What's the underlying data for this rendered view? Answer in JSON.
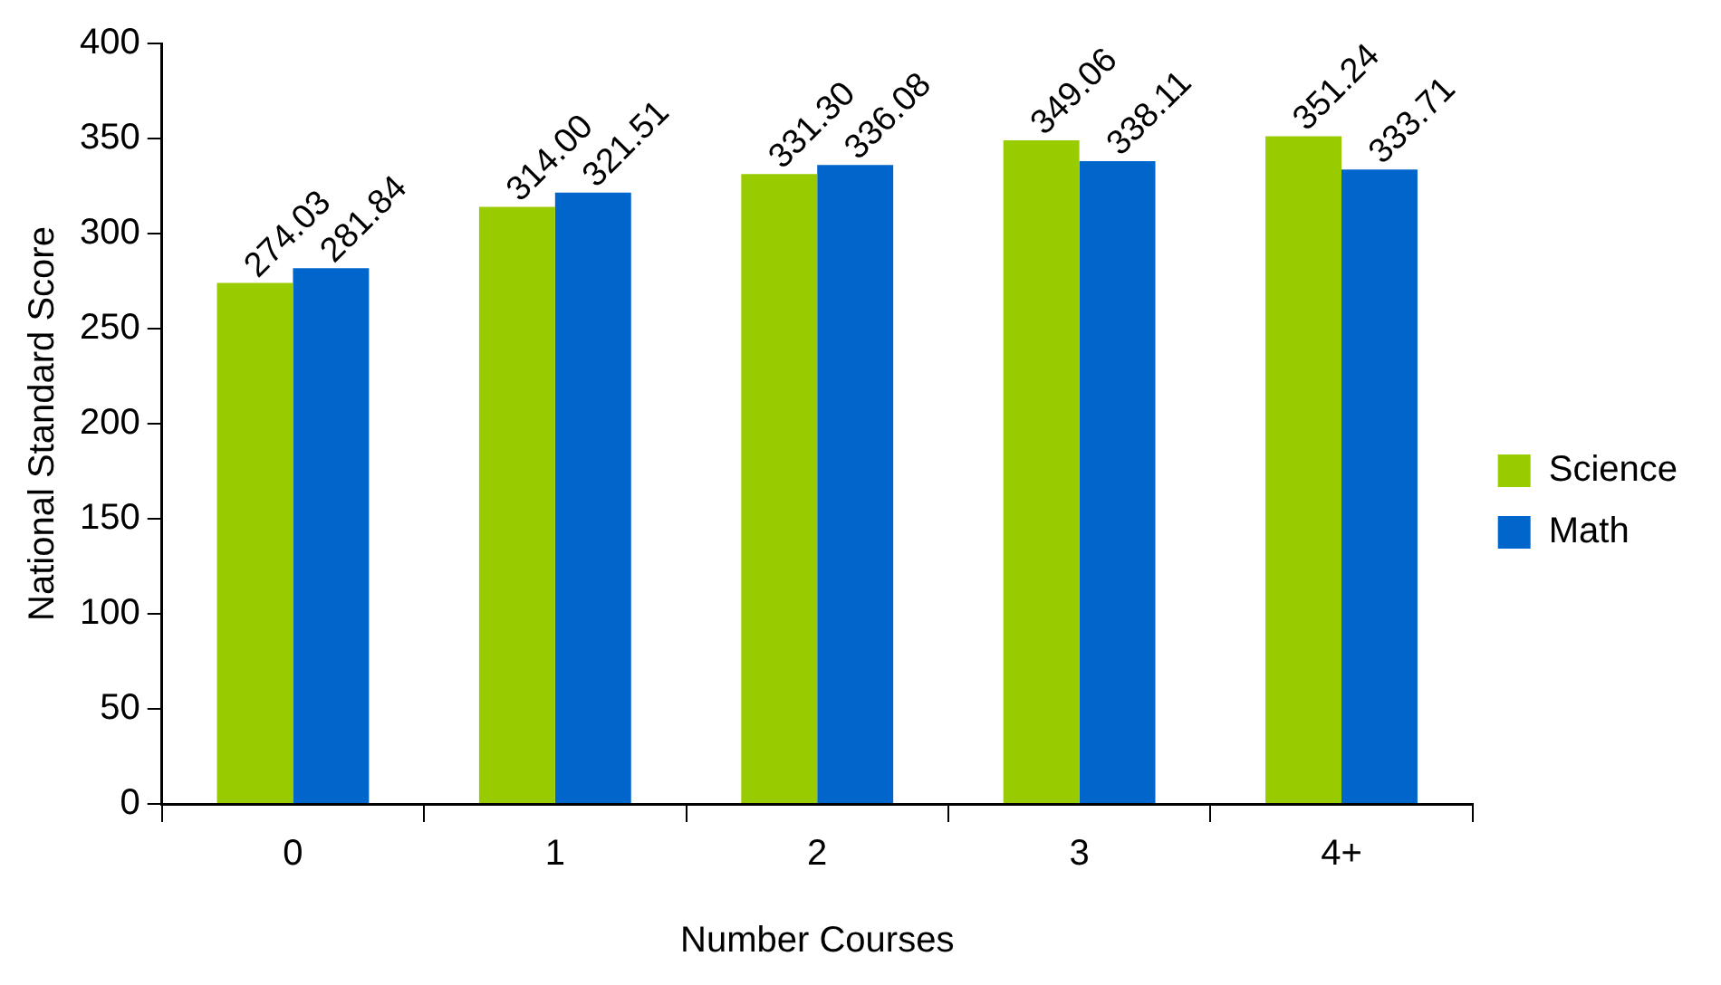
{
  "chart_data": {
    "type": "bar",
    "xlabel": "Number Courses",
    "ylabel": "National Standard Score",
    "categories": [
      "0",
      "1",
      "2",
      "3",
      "4+"
    ],
    "series": [
      {
        "name": "Science",
        "color": "#99cc00",
        "values": [
          274.03,
          314.0,
          331.3,
          349.06,
          351.24
        ],
        "value_labels": [
          "274.03",
          "314.00",
          "331.30",
          "349.06",
          "351.24"
        ]
      },
      {
        "name": "Math",
        "color": "#0066cc",
        "values": [
          281.84,
          321.51,
          336.08,
          338.11,
          333.71
        ],
        "value_labels": [
          "281.84",
          "321.51",
          "336.08",
          "338.11",
          "333.71"
        ]
      }
    ],
    "ylim": [
      0,
      400
    ],
    "yticks": [
      0,
      50,
      100,
      150,
      200,
      250,
      300,
      350,
      400
    ],
    "grid": false,
    "legend": "right"
  }
}
